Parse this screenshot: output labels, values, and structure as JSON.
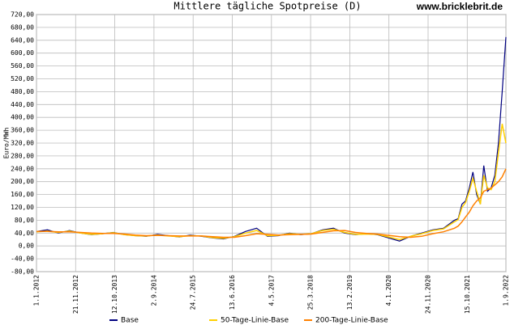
{
  "chart_data": {
    "type": "line",
    "title": "Mittlere tägliche Spotpreise (D)",
    "watermark": "www.bricklebrit.de",
    "y_label": "Euro/MWh",
    "grid": true,
    "x": [
      "2012-01-01",
      "2012-04-01",
      "2012-07-01",
      "2012-10-01",
      "2013-01-01",
      "2013-04-01",
      "2013-07-01",
      "2013-10-01",
      "2014-01-01",
      "2014-04-01",
      "2014-07-01",
      "2014-10-01",
      "2015-01-01",
      "2015-04-01",
      "2015-07-01",
      "2015-10-01",
      "2016-01-01",
      "2016-04-01",
      "2016-07-01",
      "2016-10-01",
      "2017-01-01",
      "2017-04-01",
      "2017-07-01",
      "2017-10-01",
      "2018-01-01",
      "2018-04-01",
      "2018-07-01",
      "2018-10-01",
      "2019-01-01",
      "2019-04-01",
      "2019-07-01",
      "2019-10-01",
      "2020-01-01",
      "2020-04-01",
      "2020-07-01",
      "2020-10-01",
      "2021-01-01",
      "2021-04-01",
      "2021-07-01",
      "2021-08-01",
      "2021-09-01",
      "2021-10-01",
      "2021-11-01",
      "2021-12-01",
      "2022-01-01",
      "2022-02-01",
      "2022-03-01",
      "2022-04-01",
      "2022-05-01",
      "2022-06-01",
      "2022-07-01",
      "2022-08-01",
      "2022-09-01"
    ],
    "series": [
      {
        "name": "Base",
        "color": "#000080",
        "values": [
          45,
          50,
          40,
          48,
          40,
          35,
          38,
          42,
          35,
          32,
          30,
          36,
          32,
          28,
          34,
          30,
          25,
          22,
          30,
          45,
          55,
          30,
          32,
          40,
          35,
          38,
          50,
          55,
          40,
          35,
          38,
          35,
          25,
          15,
          30,
          40,
          50,
          55,
          80,
          85,
          130,
          140,
          180,
          230,
          160,
          130,
          250,
          170,
          180,
          220,
          320,
          480,
          650
        ]
      },
      {
        "name": "50-Tage-Linie-Base",
        "color": "#ffd000",
        "values": [
          44,
          46,
          42,
          46,
          40,
          36,
          38,
          41,
          35,
          32,
          31,
          34,
          31,
          29,
          32,
          31,
          26,
          24,
          29,
          40,
          48,
          32,
          33,
          38,
          36,
          38,
          48,
          52,
          42,
          36,
          37,
          36,
          28,
          20,
          30,
          38,
          48,
          53,
          75,
          82,
          120,
          135,
          170,
          210,
          170,
          130,
          220,
          180,
          175,
          200,
          290,
          380,
          320
        ]
      },
      {
        "name": "200-Tage-Linie-Base",
        "color": "#ff8000",
        "values": [
          45,
          45,
          44,
          44,
          42,
          40,
          39,
          39,
          37,
          34,
          32,
          33,
          32,
          31,
          31,
          31,
          29,
          27,
          27,
          32,
          38,
          36,
          34,
          35,
          36,
          37,
          42,
          47,
          48,
          42,
          39,
          37,
          33,
          29,
          27,
          30,
          38,
          44,
          55,
          62,
          75,
          90,
          105,
          125,
          140,
          150,
          170,
          175,
          180,
          190,
          200,
          215,
          240
        ]
      }
    ],
    "xlim": [
      "2012-01-01",
      "2022-09-01"
    ],
    "xticks": [
      {
        "value": "2012-01-01",
        "label": "1.1.2012"
      },
      {
        "value": "2012-11-21",
        "label": "21.11.2012"
      },
      {
        "value": "2013-10-12",
        "label": "12.10.2013"
      },
      {
        "value": "2014-09-02",
        "label": "2.9.2014"
      },
      {
        "value": "2015-07-24",
        "label": "24.7.2015"
      },
      {
        "value": "2016-06-13",
        "label": "13.6.2016"
      },
      {
        "value": "2017-05-04",
        "label": "4.5.2017"
      },
      {
        "value": "2018-03-25",
        "label": "25.3.2018"
      },
      {
        "value": "2019-02-13",
        "label": "13.2.2019"
      },
      {
        "value": "2020-01-04",
        "label": "4.1.2020"
      },
      {
        "value": "2020-11-24",
        "label": "24.11.2020"
      },
      {
        "value": "2021-10-15",
        "label": "15.10.2021"
      },
      {
        "value": "2022-09-01",
        "label": "1.9.2022"
      }
    ],
    "ylim": [
      -80,
      720
    ],
    "yticks": [
      {
        "value": -80,
        "label": "-80,00"
      },
      {
        "value": -40,
        "label": "-40,00"
      },
      {
        "value": 0,
        "label": "0,00"
      },
      {
        "value": 40,
        "label": "40,00"
      },
      {
        "value": 80,
        "label": "80,00"
      },
      {
        "value": 120,
        "label": "120,00"
      },
      {
        "value": 160,
        "label": "160,00"
      },
      {
        "value": 200,
        "label": "200,00"
      },
      {
        "value": 240,
        "label": "240,00"
      },
      {
        "value": 280,
        "label": "280,00"
      },
      {
        "value": 320,
        "label": "320,00"
      },
      {
        "value": 360,
        "label": "360,00"
      },
      {
        "value": 400,
        "label": "400,00"
      },
      {
        "value": 440,
        "label": "440,00"
      },
      {
        "value": 480,
        "label": "480,00"
      },
      {
        "value": 520,
        "label": "520,00"
      },
      {
        "value": 560,
        "label": "560,00"
      },
      {
        "value": 600,
        "label": "600,00"
      },
      {
        "value": 640,
        "label": "640,00"
      },
      {
        "value": 680,
        "label": "680,00"
      },
      {
        "value": 720,
        "label": "720,00"
      }
    ]
  }
}
